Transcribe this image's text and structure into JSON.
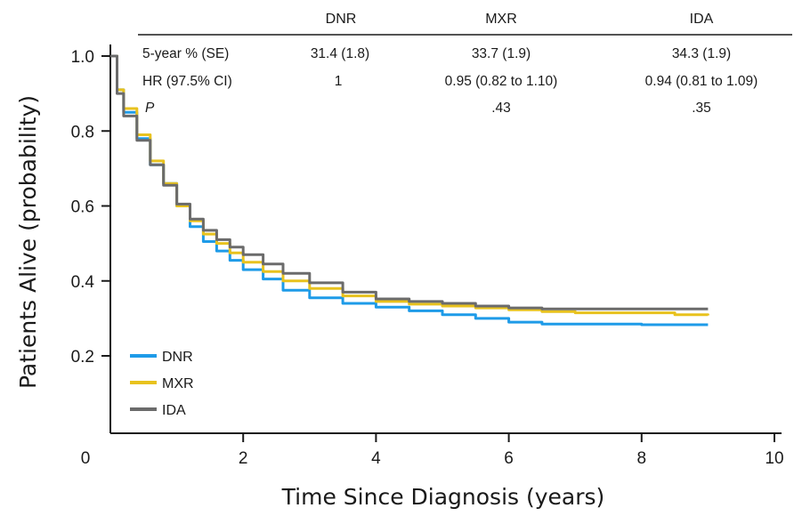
{
  "chart_data": {
    "type": "line",
    "xlabel": "Time Since Diagnosis (years)",
    "ylabel": "Patients Alive (probability)",
    "xlim": [
      0,
      10
    ],
    "ylim": [
      0.15,
      1.0
    ],
    "x_ticks": [
      0,
      2,
      4,
      6,
      8,
      10
    ],
    "y_ticks": [
      0.2,
      0.4,
      0.6,
      0.8,
      1.0
    ],
    "x_tick_labels": [
      "0",
      "2",
      "4",
      "6",
      "8",
      "10"
    ],
    "y_tick_labels": [
      "0.2",
      "0.4",
      "0.6",
      "0.8",
      "1.0"
    ],
    "grid": false,
    "legend_position": "bottom-left",
    "series": [
      {
        "name": "DNR",
        "color": "#1e9be8",
        "x": [
          0,
          0.1,
          0.2,
          0.4,
          0.6,
          0.8,
          1.0,
          1.2,
          1.4,
          1.6,
          1.8,
          2.0,
          2.3,
          2.6,
          3.0,
          3.5,
          4.0,
          4.5,
          5.0,
          5.5,
          6.0,
          6.5,
          7.0,
          8.0,
          9.0
        ],
        "y": [
          1.0,
          0.91,
          0.85,
          0.78,
          0.71,
          0.66,
          0.6,
          0.545,
          0.505,
          0.48,
          0.455,
          0.43,
          0.405,
          0.375,
          0.355,
          0.34,
          0.33,
          0.32,
          0.31,
          0.3,
          0.29,
          0.285,
          0.285,
          0.283,
          0.283
        ]
      },
      {
        "name": "MXR",
        "color": "#e8c21e",
        "x": [
          0,
          0.1,
          0.2,
          0.4,
          0.6,
          0.8,
          1.0,
          1.2,
          1.4,
          1.6,
          1.8,
          2.0,
          2.3,
          2.6,
          3.0,
          3.5,
          4.0,
          4.5,
          5.0,
          5.5,
          6.0,
          6.5,
          7.0,
          8.0,
          8.5,
          9.0
        ],
        "y": [
          1.0,
          0.91,
          0.86,
          0.79,
          0.72,
          0.66,
          0.6,
          0.56,
          0.525,
          0.5,
          0.475,
          0.45,
          0.425,
          0.4,
          0.38,
          0.36,
          0.345,
          0.338,
          0.333,
          0.328,
          0.323,
          0.318,
          0.315,
          0.315,
          0.31,
          0.308
        ]
      },
      {
        "name": "IDA",
        "color": "#6b6b6b",
        "x": [
          0,
          0.1,
          0.2,
          0.4,
          0.6,
          0.8,
          1.0,
          1.2,
          1.4,
          1.6,
          1.8,
          2.0,
          2.3,
          2.6,
          3.0,
          3.5,
          4.0,
          4.5,
          5.0,
          5.5,
          6.0,
          6.5,
          7.0,
          8.0,
          9.0
        ],
        "y": [
          1.0,
          0.9,
          0.84,
          0.775,
          0.71,
          0.655,
          0.605,
          0.565,
          0.535,
          0.51,
          0.49,
          0.47,
          0.445,
          0.42,
          0.395,
          0.37,
          0.352,
          0.345,
          0.34,
          0.333,
          0.328,
          0.325,
          0.325,
          0.325,
          0.325
        ]
      }
    ]
  },
  "summary_table": {
    "columns": [
      "DNR",
      "MXR",
      "IDA"
    ],
    "rows": [
      {
        "label": "5-year % (SE)",
        "values": [
          "31.4 (1.8)",
          "33.7 (1.9)",
          "34.3 (1.9)"
        ]
      },
      {
        "label": "HR (97.5% CI)",
        "values": [
          "1",
          "0.95 (0.82 to 1.10)",
          "0.94 (0.81 to 1.09)"
        ]
      },
      {
        "label": "P",
        "values": [
          "",
          ".43",
          ".35"
        ]
      }
    ]
  }
}
